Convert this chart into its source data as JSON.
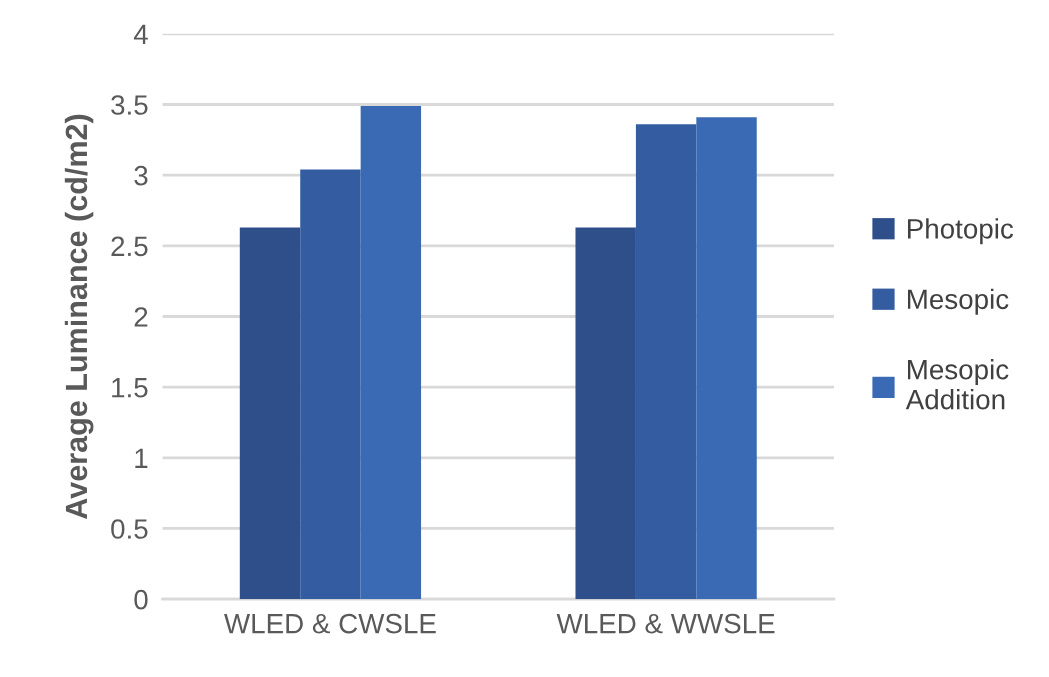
{
  "chart_data": {
    "type": "bar",
    "ylabel": "Average Luminance (cd/m2)",
    "categories": [
      "WLED & CWSLE",
      "WLED & WWSLE"
    ],
    "series": [
      {
        "name": "Photopic",
        "color": "#2e4f8a",
        "values": [
          2.63,
          2.63
        ]
      },
      {
        "name": "Mesopic",
        "color": "#345ca1",
        "values": [
          3.04,
          3.36
        ]
      },
      {
        "name": "Mesopic\nAddition",
        "color": "#3b6ab4",
        "values": [
          3.49,
          3.41
        ]
      }
    ],
    "ylim": [
      0,
      4
    ],
    "yticks": [
      0,
      0.5,
      1,
      1.5,
      2,
      2.5,
      3,
      3.5,
      4
    ],
    "grid": "y",
    "legend": "right"
  }
}
